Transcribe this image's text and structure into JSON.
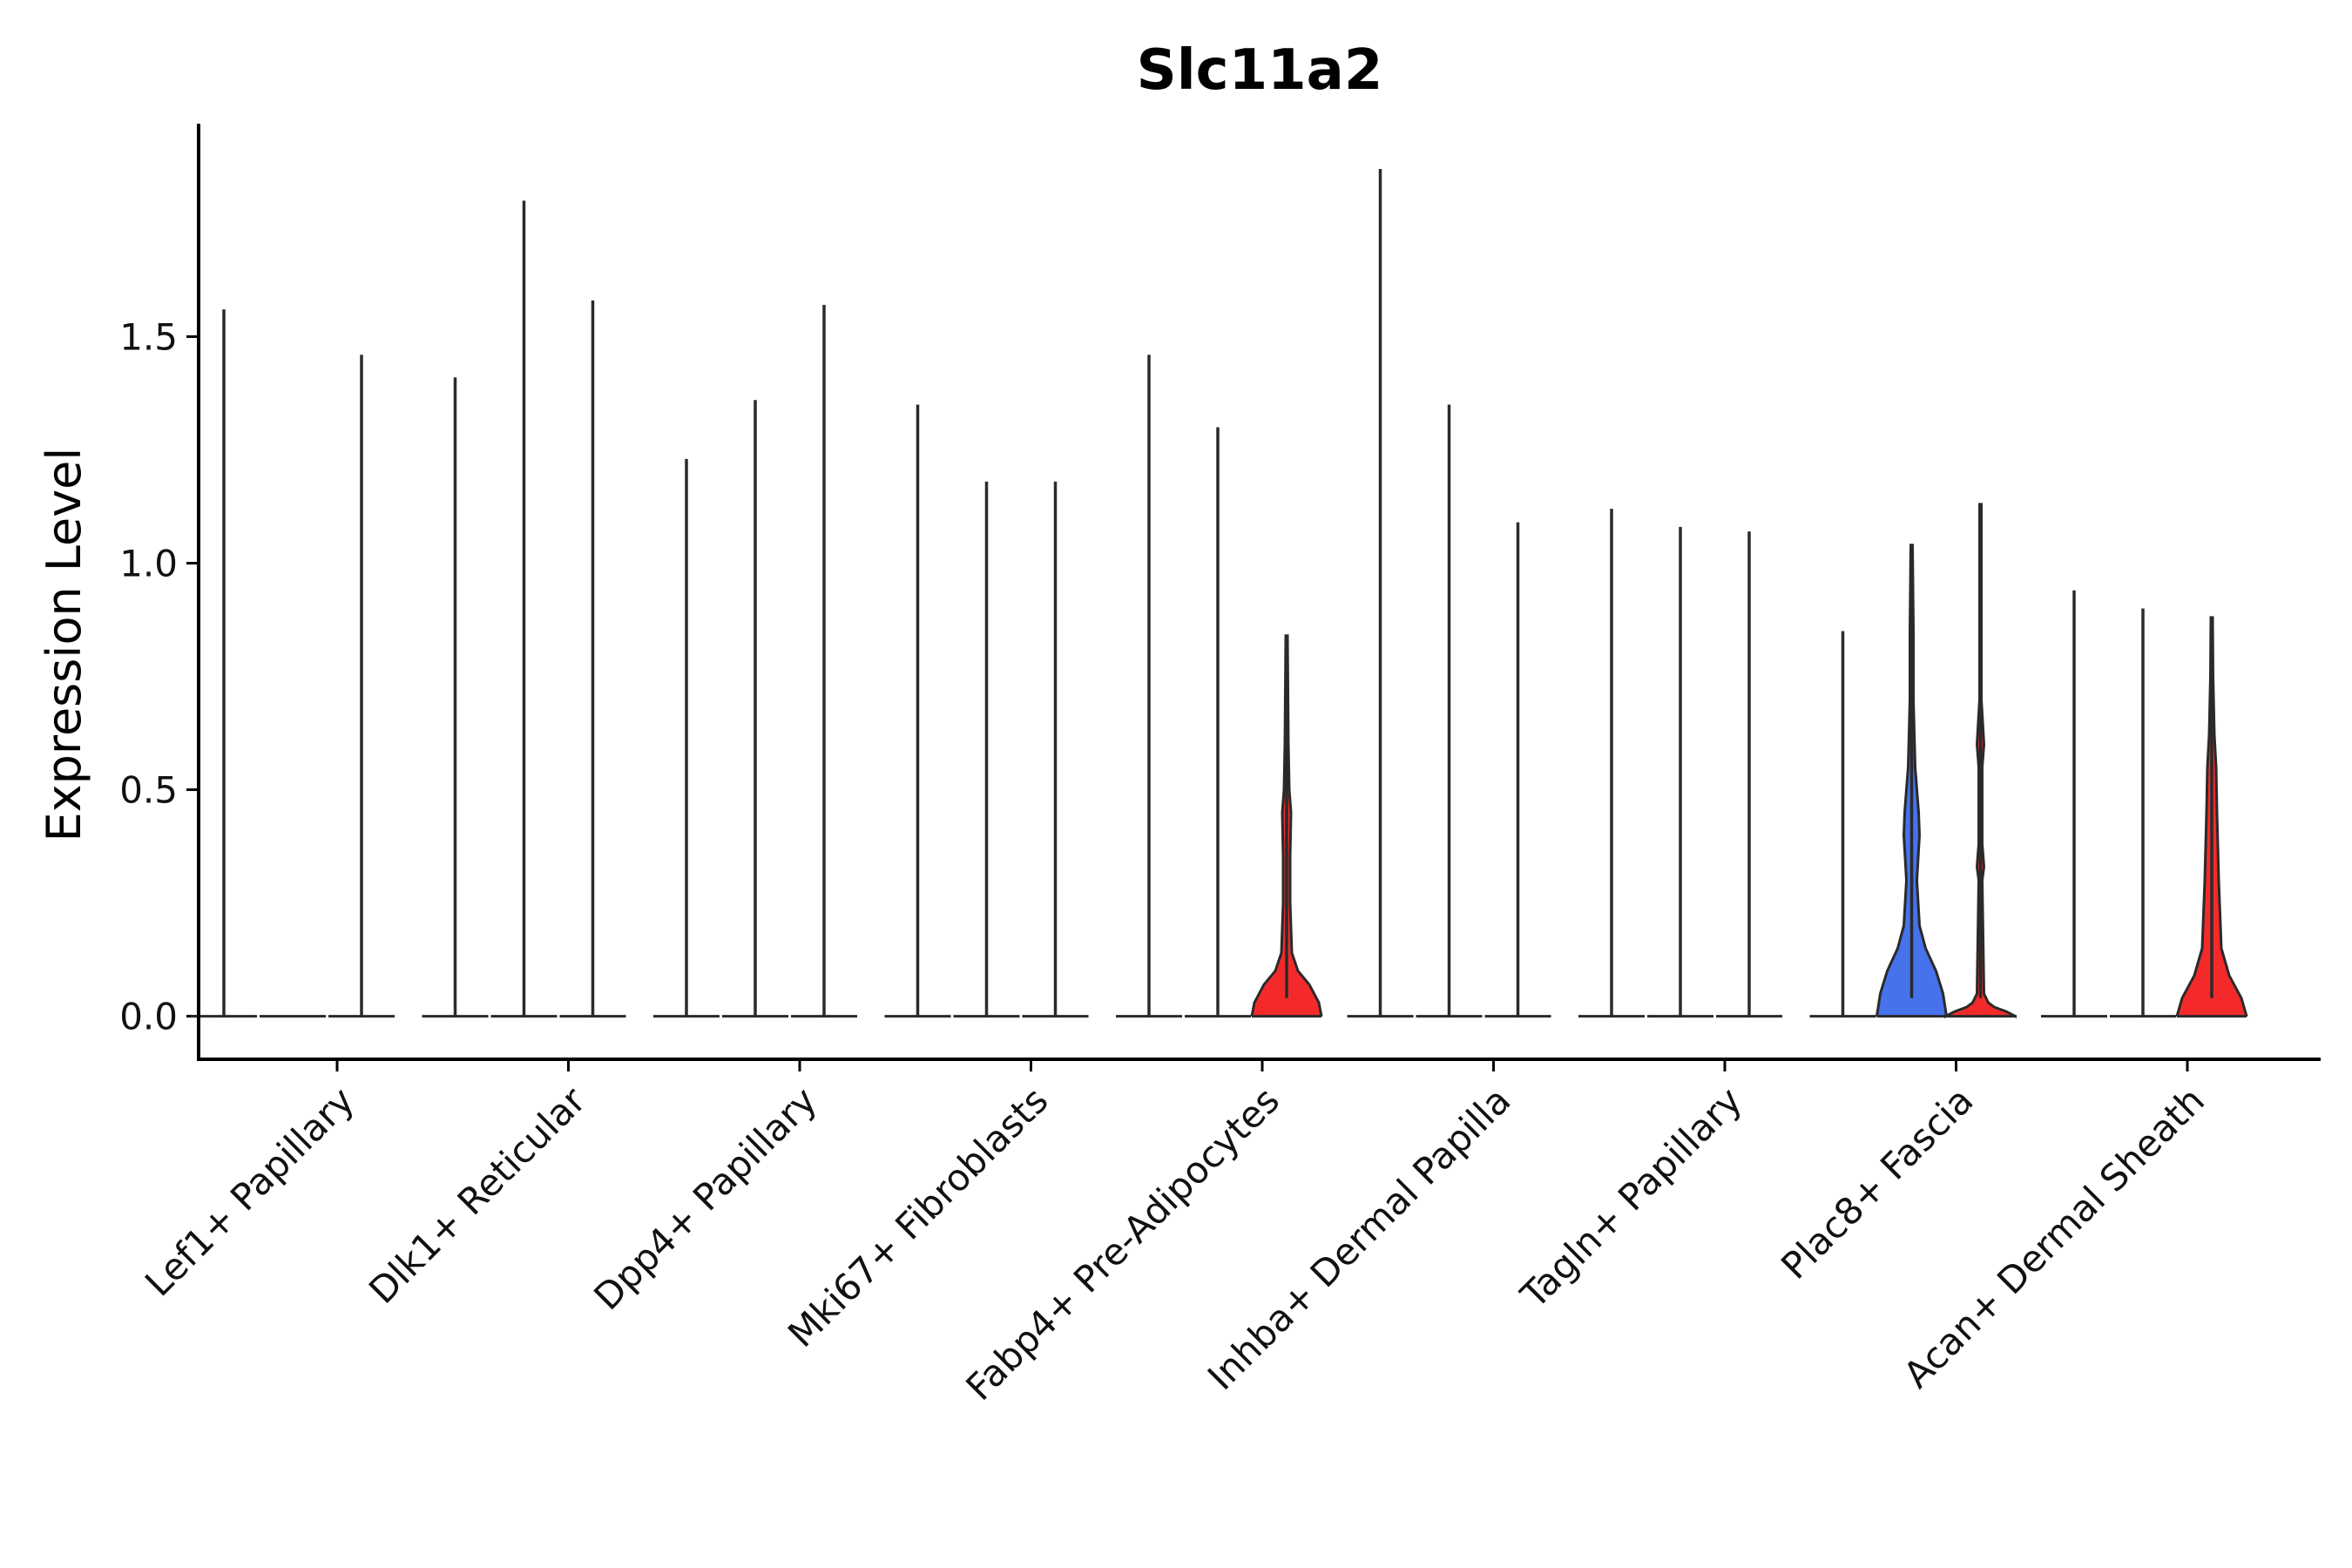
{
  "chart_data": {
    "type": "violin",
    "title": "Slc11a2",
    "xlabel": "",
    "ylabel": "Expression Level",
    "ylim": [
      -0.095,
      1.97
    ],
    "yticks": [
      0.0,
      0.5,
      1.0,
      1.5
    ],
    "ytick_labels": [
      "0.0",
      "0.5",
      "1.0",
      "1.5"
    ],
    "grid": false,
    "legend": "none",
    "groups_per_category": 3,
    "colors": {
      "outline": "#2a2a2a",
      "red": "#f42a2a",
      "blue": "#4672ec"
    },
    "categories": [
      "Lef1+ Papillary",
      "Dlk1+ Reticular",
      "Dpp4+ Papillary",
      "Mki67+ Fibroblasts",
      "Fabp4+ Pre-Adipocytes",
      "Inhba+ Dermal Papilla",
      "Tagln+ Papillary",
      "Plac8+ Fascia",
      "Acan+ Dermal Sheath"
    ],
    "series": [
      {
        "category": "Lef1+ Papillary",
        "violins": [
          {
            "max": 1.56,
            "shape": "flat"
          },
          {
            "max": 0.0,
            "shape": "flat"
          },
          {
            "max": 1.46,
            "shape": "flat"
          }
        ]
      },
      {
        "category": "Dlk1+ Reticular",
        "violins": [
          {
            "max": 1.41,
            "shape": "flat"
          },
          {
            "max": 1.8,
            "shape": "flat"
          },
          {
            "max": 1.58,
            "shape": "flat"
          }
        ]
      },
      {
        "category": "Dpp4+ Papillary",
        "violins": [
          {
            "max": 1.23,
            "shape": "flat"
          },
          {
            "max": 1.36,
            "shape": "flat"
          },
          {
            "max": 1.57,
            "shape": "flat"
          }
        ]
      },
      {
        "category": "Mki67+ Fibroblasts",
        "violins": [
          {
            "max": 1.35,
            "shape": "flat"
          },
          {
            "max": 1.18,
            "shape": "flat"
          },
          {
            "max": 1.18,
            "shape": "flat"
          }
        ]
      },
      {
        "category": "Fabp4+ Pre-Adipocytes",
        "violins": [
          {
            "max": 1.46,
            "shape": "flat"
          },
          {
            "max": 1.3,
            "shape": "flat"
          },
          {
            "max": 0.84,
            "shape": "red-wide"
          }
        ]
      },
      {
        "category": "Inhba+ Dermal Papilla",
        "violins": [
          {
            "max": 1.87,
            "shape": "flat"
          },
          {
            "max": 1.35,
            "shape": "flat"
          },
          {
            "max": 1.09,
            "shape": "flat"
          }
        ]
      },
      {
        "category": "Tagln+ Papillary",
        "violins": [
          {
            "max": 1.12,
            "shape": "flat"
          },
          {
            "max": 1.08,
            "shape": "flat"
          },
          {
            "max": 1.07,
            "shape": "flat"
          }
        ]
      },
      {
        "category": "Plac8+ Fascia",
        "violins": [
          {
            "max": 0.85,
            "shape": "flat"
          },
          {
            "max": 1.04,
            "shape": "blue-wide"
          },
          {
            "max": 1.13,
            "shape": "red-small"
          }
        ]
      },
      {
        "category": "Acan+ Dermal Sheath",
        "violins": [
          {
            "max": 0.94,
            "shape": "flat"
          },
          {
            "max": 0.9,
            "shape": "flat"
          },
          {
            "max": 0.88,
            "shape": "red-wide2"
          }
        ]
      }
    ]
  }
}
